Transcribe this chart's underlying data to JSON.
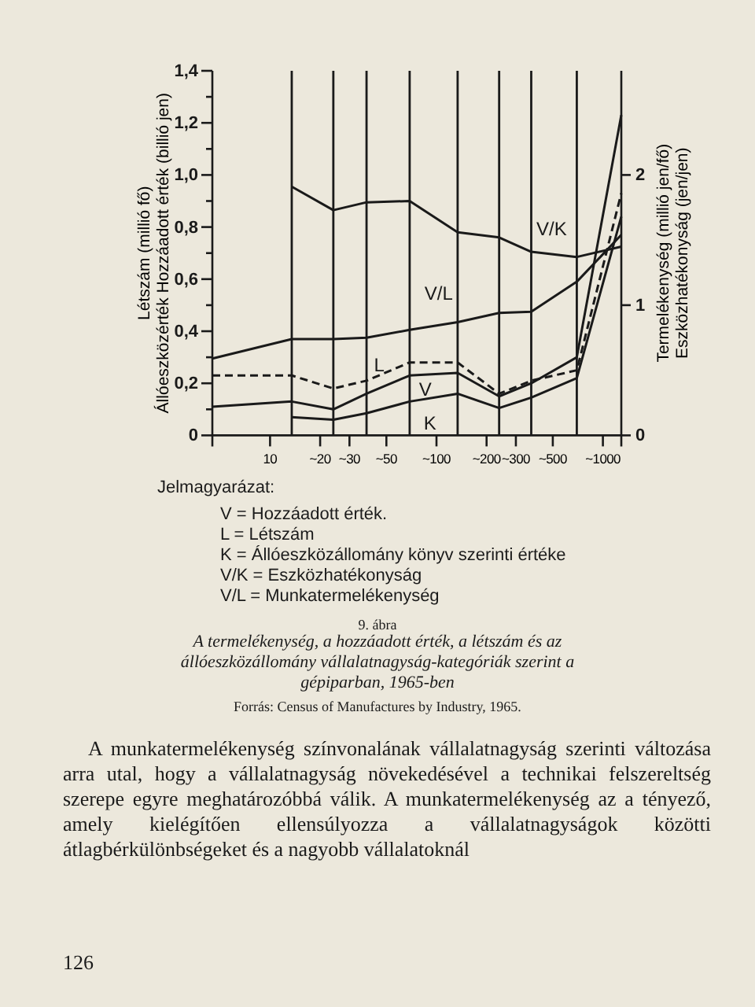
{
  "chart_data": {
    "type": "line",
    "subtitle": "9. ábra",
    "title": "A termelékenység, a hozzáadott érték, a létszám és az állóeszközállomány vállalatnagyság-kategóriák szerint a gépiparban, 1965-ben",
    "ylabel": "Létszám (millió fő)\nÁllóeszközérték Hozzáadott érték (billió jen)",
    "y2label": "Termelékenység (millió jen/fő)\nEszközhatékonyság (jen/jen)",
    "log": "x",
    "xlim": [
      4.5,
      1290
    ],
    "xticks": [
      10,
      {
        "value": 20,
        "label": "~20"
      },
      {
        "value": 30,
        "label": "~30"
      },
      {
        "value": 50,
        "label": "~50"
      },
      {
        "value": 100,
        "label": "~100"
      },
      {
        "value": 200,
        "label": "~200"
      },
      {
        "value": 300,
        "label": "~300"
      },
      {
        "value": 500,
        "label": "~500"
      },
      {
        "value": 1000,
        "label": "~1000"
      }
    ],
    "ylim": [
      0,
      1.4
    ],
    "yticks": [
      0,
      {
        "value": 0.1,
        "label": null
      },
      {
        "value": 0.2,
        "label": "0,2"
      },
      {
        "value": 0.3,
        "label": null
      },
      {
        "value": 0.4,
        "label": "0,4"
      },
      {
        "value": 0.5,
        "label": null
      },
      {
        "value": 0.6,
        "label": "0,6"
      },
      {
        "value": 0.7,
        "label": null
      },
      {
        "value": 0.8,
        "label": "0,8"
      },
      {
        "value": 0.9,
        "label": null
      },
      {
        "value": 1.0,
        "label": "1,0"
      },
      {
        "value": 1.1,
        "label": null
      },
      {
        "value": 1.2,
        "label": "1,2"
      },
      {
        "value": 1.3,
        "label": null
      },
      {
        "value": 1.4,
        "label": "1,4"
      }
    ],
    "y2lim": [
      0,
      2.8
    ],
    "y2ticks": [
      0,
      1,
      2
    ],
    "x": [
      4.5,
      13.5,
      24,
      38,
      69,
      134,
      238,
      371,
      697,
      1290
    ],
    "series": [
      {
        "name": "V/K",
        "color": "#1a1a1a",
        "axis": "y2",
        "values": [
          null,
          1.91,
          1.73,
          1.79,
          1.8,
          1.56,
          1.52,
          1.41,
          1.37,
          1.45
        ]
      },
      {
        "name": "V/L",
        "color": "#1a1a1a",
        "axis": "y2",
        "values": [
          0.59,
          0.74,
          0.74,
          0.75,
          0.81,
          0.87,
          0.94,
          0.95,
          1.18,
          1.54
        ]
      },
      {
        "name": "L",
        "color": "#1a1a1a",
        "line_style": "dashed",
        "values": [
          0.23,
          0.23,
          0.18,
          0.21,
          0.28,
          0.28,
          0.16,
          0.21,
          0.25,
          0.93
        ]
      },
      {
        "name": "V",
        "color": "#1a1a1a",
        "values": [
          0.11,
          0.13,
          0.1,
          0.16,
          0.23,
          0.24,
          0.15,
          0.2,
          0.3,
          1.23
        ]
      },
      {
        "name": "K",
        "color": "#1a1a1a",
        "values": [
          null,
          0.07,
          0.06,
          0.085,
          0.13,
          0.16,
          0.105,
          0.145,
          0.22,
          0.84
        ]
      }
    ],
    "ref_lines": [
      {
        "axis": "x",
        "value": 13.5
      },
      {
        "axis": "x",
        "value": 24
      },
      {
        "axis": "x",
        "value": 38
      },
      {
        "axis": "x",
        "value": 69
      },
      {
        "axis": "x",
        "value": 134
      },
      {
        "axis": "x",
        "value": 238
      },
      {
        "axis": "x",
        "value": 371
      },
      {
        "axis": "x",
        "value": 697
      }
    ],
    "line_style": "solid",
    "marker": "none",
    "grid": false,
    "annotations": [
      "Jelmagyarázat:",
      "V = Hozzáadott érték.",
      "L = Létszám",
      "K = Állóeszközállomány könyv szerinti értéke",
      "V/K = Eszközhatékonyság",
      "V/L = Munkatermelékenység",
      "Forrás: Census of Manufactures by Industry, 1965.",
      "A munkatermelékenység színvonalának vállalatnagyság szerinti változása arra utal, hogy a vállalatnagyság növekedésével a technikai felszereltség szerepe egyre meghatározóbbá válik. A munkatermelékenység az a tényező, amely kielégítően ellensúlyozza a vállalatnagyságok közötti átlagbérkülönbségeket és a nagyobb vállalatoknál",
      "126"
    ]
  }
}
